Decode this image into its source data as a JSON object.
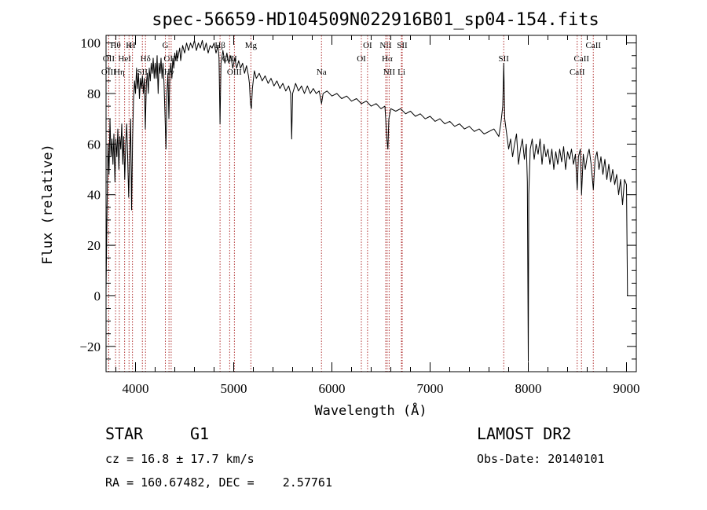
{
  "chart_data": {
    "type": "line",
    "title": "spec-56659-HD104509N022916B01_sp04-154.fits",
    "xlabel": "Wavelength (Å)",
    "ylabel": "Flux (relative)",
    "xlim": [
      3700,
      9100
    ],
    "ylim": [
      -30,
      103
    ],
    "x_ticks": [
      4000,
      5000,
      6000,
      7000,
      8000,
      9000
    ],
    "y_ticks": [
      -20,
      0,
      20,
      40,
      60,
      80,
      100
    ],
    "grid": false,
    "spectral_lines": [
      {
        "label": "Hθ",
        "wavelength": 3797,
        "row": 0
      },
      {
        "label": "OII",
        "wavelength": 3727,
        "row": 1
      },
      {
        "label": "OIII",
        "wavelength": 3727,
        "row": 2
      },
      {
        "label": "K",
        "wavelength": 3934,
        "row": 0
      },
      {
        "label": "H",
        "wavelength": 3969,
        "row": 0
      },
      {
        "label": "HeI",
        "wavelength": 3889,
        "row": 1
      },
      {
        "label": "Hη",
        "wavelength": 3835,
        "row": 2
      },
      {
        "label": "Hδ",
        "wavelength": 4102,
        "row": 1
      },
      {
        "label": "SII",
        "wavelength": 4070,
        "row": 2
      },
      {
        "label": "G",
        "wavelength": 4304,
        "row": 0
      },
      {
        "label": "OIII",
        "wavelength": 4363,
        "row": 1
      },
      {
        "label": "Hγ",
        "wavelength": 4341,
        "row": 2
      },
      {
        "label": "Hβ",
        "wavelength": 4861,
        "row": 0
      },
      {
        "label": "OIII",
        "wavelength": 4959,
        "row": 1
      },
      {
        "label": "OIII",
        "wavelength": 5007,
        "row": 2
      },
      {
        "label": "Mg",
        "wavelength": 5175,
        "row": 0
      },
      {
        "label": "Na",
        "wavelength": 5894,
        "row": 2
      },
      {
        "label": "OI",
        "wavelength": 6300,
        "row": 1
      },
      {
        "label": "OI",
        "wavelength": 6363,
        "row": 0
      },
      {
        "label": "NII",
        "wavelength": 6548,
        "row": 0
      },
      {
        "label": "Hα",
        "wavelength": 6563,
        "row": 1
      },
      {
        "label": "NII",
        "wavelength": 6583,
        "row": 2
      },
      {
        "label": "SII",
        "wavelength": 6716,
        "row": 0
      },
      {
        "label": "Li",
        "wavelength": 6708,
        "row": 2
      },
      {
        "label": "SII",
        "wavelength": 7750,
        "row": 1
      },
      {
        "label": "CaII",
        "wavelength": 8498,
        "row": 2
      },
      {
        "label": "CaII",
        "wavelength": 8542,
        "row": 1
      },
      {
        "label": "CaII",
        "wavelength": 8662,
        "row": 0
      }
    ],
    "spectrum": [
      [
        3700,
        2
      ],
      [
        3710,
        35
      ],
      [
        3720,
        60
      ],
      [
        3730,
        48
      ],
      [
        3740,
        70
      ],
      [
        3750,
        55
      ],
      [
        3760,
        62
      ],
      [
        3770,
        52
      ],
      [
        3780,
        64
      ],
      [
        3790,
        45
      ],
      [
        3800,
        62
      ],
      [
        3810,
        55
      ],
      [
        3820,
        66
      ],
      [
        3830,
        50
      ],
      [
        3840,
        63
      ],
      [
        3850,
        58
      ],
      [
        3860,
        68
      ],
      [
        3870,
        52
      ],
      [
        3880,
        63
      ],
      [
        3890,
        46
      ],
      [
        3900,
        60
      ],
      [
        3910,
        68
      ],
      [
        3920,
        55
      ],
      [
        3930,
        39
      ],
      [
        3940,
        55
      ],
      [
        3950,
        70
      ],
      [
        3960,
        34
      ],
      [
        3970,
        62
      ],
      [
        3980,
        78
      ],
      [
        3990,
        85
      ],
      [
        4000,
        80
      ],
      [
        4010,
        90
      ],
      [
        4020,
        82
      ],
      [
        4030,
        88
      ],
      [
        4040,
        78
      ],
      [
        4050,
        86
      ],
      [
        4060,
        82
      ],
      [
        4070,
        87
      ],
      [
        4080,
        80
      ],
      [
        4090,
        86
      ],
      [
        4100,
        66
      ],
      [
        4110,
        84
      ],
      [
        4120,
        88
      ],
      [
        4130,
        80
      ],
      [
        4140,
        90
      ],
      [
        4150,
        85
      ],
      [
        4160,
        92
      ],
      [
        4170,
        88
      ],
      [
        4180,
        94
      ],
      [
        4190,
        86
      ],
      [
        4200,
        92
      ],
      [
        4210,
        86
      ],
      [
        4220,
        95
      ],
      [
        4230,
        80
      ],
      [
        4240,
        92
      ],
      [
        4250,
        88
      ],
      [
        4260,
        94
      ],
      [
        4270,
        86
      ],
      [
        4280,
        92
      ],
      [
        4290,
        84
      ],
      [
        4300,
        72
      ],
      [
        4310,
        58
      ],
      [
        4320,
        80
      ],
      [
        4330,
        88
      ],
      [
        4340,
        70
      ],
      [
        4350,
        88
      ],
      [
        4360,
        92
      ],
      [
        4370,
        86
      ],
      [
        4380,
        94
      ],
      [
        4390,
        90
      ],
      [
        4400,
        96
      ],
      [
        4410,
        93
      ],
      [
        4420,
        97
      ],
      [
        4430,
        94
      ],
      [
        4440,
        96
      ],
      [
        4450,
        98
      ],
      [
        4460,
        93
      ],
      [
        4480,
        99
      ],
      [
        4500,
        96
      ],
      [
        4520,
        100
      ],
      [
        4540,
        97
      ],
      [
        4560,
        100
      ],
      [
        4580,
        98
      ],
      [
        4600,
        101
      ],
      [
        4620,
        97
      ],
      [
        4640,
        100
      ],
      [
        4660,
        98
      ],
      [
        4680,
        101
      ],
      [
        4700,
        97
      ],
      [
        4720,
        100
      ],
      [
        4740,
        96
      ],
      [
        4760,
        99
      ],
      [
        4780,
        98
      ],
      [
        4800,
        100
      ],
      [
        4820,
        96
      ],
      [
        4840,
        99
      ],
      [
        4850,
        94
      ],
      [
        4861,
        68
      ],
      [
        4870,
        92
      ],
      [
        4890,
        97
      ],
      [
        4910,
        92
      ],
      [
        4930,
        96
      ],
      [
        4950,
        92
      ],
      [
        4970,
        95
      ],
      [
        4990,
        90
      ],
      [
        5010,
        94
      ],
      [
        5030,
        90
      ],
      [
        5050,
        93
      ],
      [
        5070,
        90
      ],
      [
        5090,
        92
      ],
      [
        5110,
        88
      ],
      [
        5130,
        91
      ],
      [
        5150,
        87
      ],
      [
        5160,
        84
      ],
      [
        5170,
        76
      ],
      [
        5180,
        74
      ],
      [
        5190,
        82
      ],
      [
        5210,
        89
      ],
      [
        5230,
        86
      ],
      [
        5260,
        88
      ],
      [
        5290,
        85
      ],
      [
        5320,
        87
      ],
      [
        5350,
        84
      ],
      [
        5380,
        86
      ],
      [
        5410,
        83
      ],
      [
        5440,
        85
      ],
      [
        5470,
        82
      ],
      [
        5500,
        84
      ],
      [
        5530,
        81
      ],
      [
        5560,
        83
      ],
      [
        5580,
        80
      ],
      [
        5590,
        62
      ],
      [
        5600,
        80
      ],
      [
        5630,
        84
      ],
      [
        5660,
        81
      ],
      [
        5690,
        83
      ],
      [
        5720,
        80
      ],
      [
        5750,
        83
      ],
      [
        5780,
        80
      ],
      [
        5810,
        82
      ],
      [
        5840,
        80
      ],
      [
        5870,
        81
      ],
      [
        5894,
        76
      ],
      [
        5910,
        80
      ],
      [
        5950,
        81
      ],
      [
        6000,
        79
      ],
      [
        6050,
        80
      ],
      [
        6100,
        78
      ],
      [
        6150,
        79
      ],
      [
        6200,
        77
      ],
      [
        6250,
        78
      ],
      [
        6300,
        76
      ],
      [
        6350,
        77
      ],
      [
        6400,
        75
      ],
      [
        6450,
        76
      ],
      [
        6500,
        74
      ],
      [
        6540,
        75
      ],
      [
        6560,
        62
      ],
      [
        6570,
        58
      ],
      [
        6580,
        70
      ],
      [
        6600,
        74
      ],
      [
        6650,
        73
      ],
      [
        6700,
        74
      ],
      [
        6750,
        72
      ],
      [
        6800,
        73
      ],
      [
        6850,
        71
      ],
      [
        6900,
        72
      ],
      [
        6950,
        70
      ],
      [
        7000,
        71
      ],
      [
        7050,
        69
      ],
      [
        7100,
        70
      ],
      [
        7150,
        68
      ],
      [
        7200,
        69
      ],
      [
        7250,
        67
      ],
      [
        7300,
        68
      ],
      [
        7350,
        66
      ],
      [
        7400,
        67
      ],
      [
        7450,
        65
      ],
      [
        7500,
        66
      ],
      [
        7550,
        64
      ],
      [
        7600,
        65
      ],
      [
        7650,
        66
      ],
      [
        7700,
        63
      ],
      [
        7720,
        68
      ],
      [
        7740,
        75
      ],
      [
        7750,
        92
      ],
      [
        7760,
        70
      ],
      [
        7780,
        64
      ],
      [
        7800,
        58
      ],
      [
        7820,
        62
      ],
      [
        7840,
        55
      ],
      [
        7860,
        60
      ],
      [
        7880,
        64
      ],
      [
        7900,
        52
      ],
      [
        7920,
        58
      ],
      [
        7940,
        62
      ],
      [
        7960,
        54
      ],
      [
        7980,
        60
      ],
      [
        7990,
        45
      ],
      [
        8000,
        -26
      ],
      [
        8005,
        40
      ],
      [
        8020,
        58
      ],
      [
        8040,
        62
      ],
      [
        8060,
        54
      ],
      [
        8080,
        60
      ],
      [
        8100,
        56
      ],
      [
        8120,
        62
      ],
      [
        8140,
        52
      ],
      [
        8160,
        60
      ],
      [
        8180,
        55
      ],
      [
        8200,
        58
      ],
      [
        8220,
        52
      ],
      [
        8240,
        58
      ],
      [
        8260,
        50
      ],
      [
        8280,
        57
      ],
      [
        8300,
        52
      ],
      [
        8320,
        58
      ],
      [
        8340,
        53
      ],
      [
        8360,
        59
      ],
      [
        8380,
        50
      ],
      [
        8400,
        57
      ],
      [
        8420,
        54
      ],
      [
        8440,
        58
      ],
      [
        8460,
        52
      ],
      [
        8480,
        56
      ],
      [
        8498,
        42
      ],
      [
        8510,
        55
      ],
      [
        8530,
        58
      ],
      [
        8542,
        40
      ],
      [
        8560,
        56
      ],
      [
        8580,
        50
      ],
      [
        8600,
        55
      ],
      [
        8620,
        58
      ],
      [
        8640,
        52
      ],
      [
        8662,
        42
      ],
      [
        8680,
        54
      ],
      [
        8700,
        57
      ],
      [
        8720,
        50
      ],
      [
        8740,
        55
      ],
      [
        8760,
        48
      ],
      [
        8780,
        54
      ],
      [
        8800,
        46
      ],
      [
        8820,
        52
      ],
      [
        8840,
        45
      ],
      [
        8860,
        50
      ],
      [
        8880,
        44
      ],
      [
        8900,
        48
      ],
      [
        8920,
        40
      ],
      [
        8940,
        46
      ],
      [
        8960,
        36
      ],
      [
        8980,
        46
      ],
      [
        9000,
        44
      ],
      [
        9010,
        0
      ]
    ]
  },
  "info": {
    "object_type": "STAR",
    "subclass": "G1",
    "survey": "LAMOST DR2",
    "cz": "cz = 16.8 ± 17.7 km/s",
    "obs_date": "Obs-Date: 20140101",
    "radec": "RA = 160.67482, DEC =    2.57761"
  }
}
